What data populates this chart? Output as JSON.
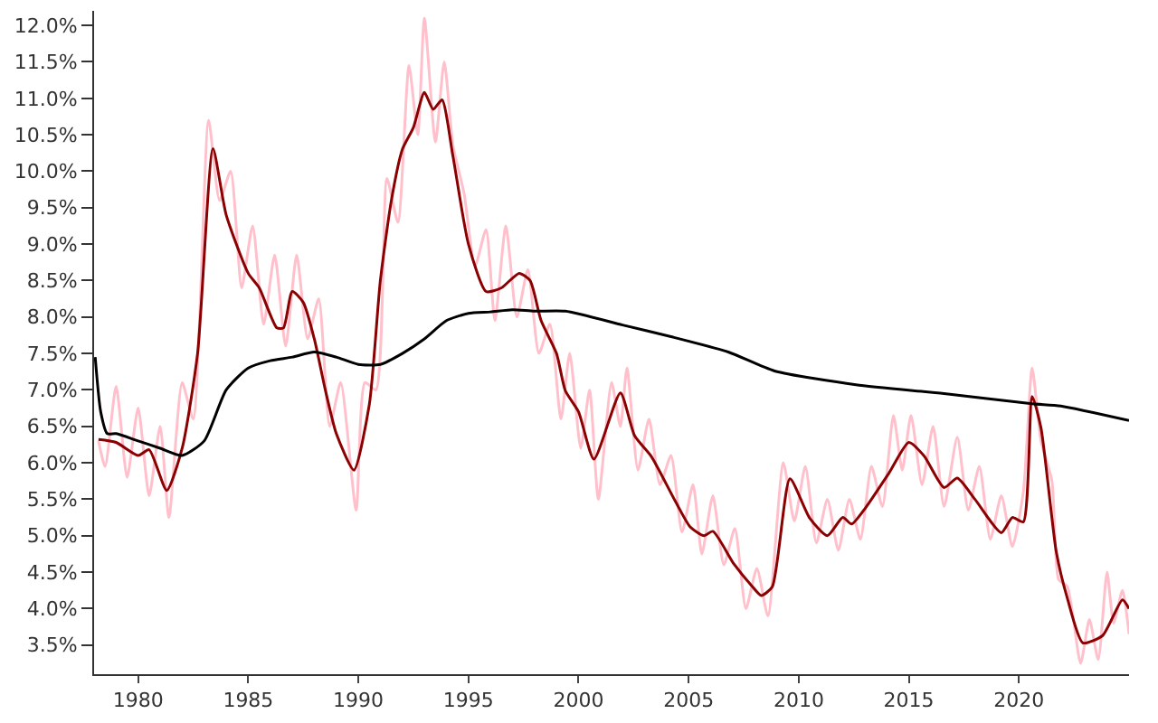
{
  "chart_data": {
    "type": "line",
    "xlim": [
      1978,
      2025
    ],
    "xticks": [
      1980,
      1985,
      1990,
      1995,
      2000,
      2005,
      2010,
      2015,
      2020
    ],
    "ylim": [
      3.1,
      12.2
    ],
    "yticks": [
      {
        "value": 3.5,
        "label": "3.5%"
      },
      {
        "value": 4.0,
        "label": "4.0%"
      },
      {
        "value": 4.5,
        "label": "4.5%"
      },
      {
        "value": 5.0,
        "label": "5.0%"
      },
      {
        "value": 5.5,
        "label": "5.5%"
      },
      {
        "value": 6.0,
        "label": "6.0%"
      },
      {
        "value": 6.5,
        "label": "6.5%"
      },
      {
        "value": 7.0,
        "label": "7.0%"
      },
      {
        "value": 7.5,
        "label": "7.5%"
      },
      {
        "value": 8.0,
        "label": "8.0%"
      },
      {
        "value": 8.5,
        "label": "8.5%"
      },
      {
        "value": 9.0,
        "label": "9.0%"
      },
      {
        "value": 9.5,
        "label": "9.5%"
      },
      {
        "value": 10.0,
        "label": "10.0%"
      },
      {
        "value": 10.5,
        "label": "10.5%"
      },
      {
        "value": 11.0,
        "label": "11.0%"
      },
      {
        "value": 11.5,
        "label": "11.5%"
      },
      {
        "value": 12.0,
        "label": "12.0%"
      }
    ],
    "marker": "none",
    "line_style": "solid",
    "series": [
      {
        "color": "#ffc0cb",
        "x": [
          1978.2,
          1978.5,
          1979.0,
          1979.5,
          1980.0,
          1980.5,
          1981.0,
          1981.4,
          1982.0,
          1982.5,
          1983.2,
          1983.7,
          1984.2,
          1984.7,
          1985.2,
          1985.7,
          1986.2,
          1986.7,
          1987.2,
          1987.7,
          1988.2,
          1988.7,
          1989.2,
          1989.9,
          1990.3,
          1990.8,
          1991.3,
          1991.8,
          1992.3,
          1992.7,
          1993.0,
          1993.5,
          1993.9,
          1994.3,
          1994.8,
          1995.3,
          1995.8,
          1996.2,
          1996.7,
          1997.2,
          1997.7,
          1998.2,
          1998.7,
          1999.2,
          1999.6,
          2000.1,
          2000.5,
          2000.9,
          2001.5,
          2001.9,
          2002.2,
          2002.7,
          2003.2,
          2003.7,
          2004.2,
          2004.7,
          2005.2,
          2005.6,
          2006.1,
          2006.6,
          2007.1,
          2007.6,
          2008.1,
          2008.6,
          2009.3,
          2009.8,
          2010.3,
          2010.8,
          2011.3,
          2011.8,
          2012.3,
          2012.8,
          2013.3,
          2013.8,
          2014.3,
          2014.7,
          2015.1,
          2015.6,
          2016.1,
          2016.6,
          2017.2,
          2017.7,
          2018.2,
          2018.7,
          2019.2,
          2019.7,
          2020.2,
          2020.6,
          2021.0,
          2021.5,
          2021.8,
          2022.2,
          2022.8,
          2023.2,
          2023.6,
          2024.0,
          2024.3,
          2024.7,
          2025.0
        ],
        "values": [
          6.3,
          5.95,
          7.05,
          5.8,
          6.75,
          5.55,
          6.5,
          5.25,
          7.1,
          6.6,
          10.7,
          9.6,
          10.0,
          8.4,
          9.25,
          7.9,
          8.85,
          7.6,
          8.85,
          7.7,
          8.25,
          6.5,
          7.1,
          5.35,
          7.1,
          7.0,
          9.9,
          9.3,
          11.45,
          10.5,
          12.1,
          10.4,
          11.5,
          10.35,
          9.7,
          8.7,
          9.2,
          7.95,
          9.25,
          8.0,
          8.65,
          7.5,
          7.9,
          6.6,
          7.5,
          6.2,
          7.0,
          5.5,
          7.1,
          6.5,
          7.3,
          5.9,
          6.6,
          5.7,
          6.1,
          5.05,
          5.7,
          4.75,
          5.55,
          4.6,
          5.1,
          4.0,
          4.55,
          3.9,
          6.0,
          5.2,
          5.95,
          4.9,
          5.5,
          4.8,
          5.5,
          4.95,
          5.95,
          5.4,
          6.65,
          5.9,
          6.65,
          5.7,
          6.5,
          5.4,
          6.35,
          5.35,
          5.95,
          4.95,
          5.55,
          4.85,
          5.6,
          7.3,
          6.3,
          5.75,
          4.4,
          4.3,
          3.25,
          3.85,
          3.3,
          4.5,
          3.8,
          4.25,
          3.65
        ]
      },
      {
        "color": "#8b0000",
        "x": [
          1978.2,
          1979.0,
          1980.0,
          1980.5,
          1981.3,
          1982.0,
          1982.7,
          1983.4,
          1984.0,
          1985.0,
          1985.5,
          1986.3,
          1986.6,
          1987.0,
          1987.5,
          1988.0,
          1988.5,
          1989.0,
          1989.8,
          1990.5,
          1991.0,
          1991.5,
          1992.0,
          1992.5,
          1993.0,
          1993.4,
          1993.8,
          1994.3,
          1995.0,
          1995.8,
          1996.5,
          1997.3,
          1997.8,
          1998.3,
          1999.0,
          1999.4,
          2000.0,
          2000.7,
          2001.9,
          2002.55,
          2003.3,
          2004.4,
          2005.07,
          2005.7,
          2006.1,
          2007.06,
          2007.9,
          2008.3,
          2008.8,
          2009.6,
          2010.5,
          2011.3,
          2012.0,
          2012.4,
          2013.05,
          2014.1,
          2015.0,
          2015.7,
          2016.6,
          2017.2,
          2018.0,
          2019.2,
          2019.7,
          2020.2,
          2020.6,
          2021.0,
          2021.7,
          2022.2,
          2022.9,
          2023.8,
          2024.7,
          2025.0
        ],
        "values": [
          6.32,
          6.28,
          6.1,
          6.18,
          5.62,
          6.2,
          7.5,
          10.31,
          9.4,
          8.6,
          8.4,
          7.85,
          7.85,
          8.35,
          8.2,
          7.7,
          7.0,
          6.4,
          5.9,
          6.8,
          8.5,
          9.6,
          10.3,
          10.6,
          11.08,
          10.85,
          10.98,
          10.2,
          9.0,
          8.35,
          8.4,
          8.6,
          8.5,
          7.95,
          7.5,
          6.99,
          6.7,
          6.05,
          6.96,
          6.37,
          6.09,
          5.47,
          5.12,
          5.0,
          5.06,
          4.61,
          4.3,
          4.18,
          4.3,
          5.78,
          5.24,
          5.0,
          5.25,
          5.16,
          5.39,
          5.86,
          6.28,
          6.09,
          5.66,
          5.79,
          5.5,
          5.04,
          5.25,
          5.19,
          6.91,
          6.48,
          4.77,
          4.14,
          3.53,
          3.63,
          4.12,
          4.0
        ]
      },
      {
        "color": "#000000",
        "x": [
          1978.05,
          1978.3,
          1978.6,
          1979.0,
          1980.0,
          1981.0,
          1982.0,
          1983.0,
          1984.0,
          1985.0,
          1986.0,
          1987.0,
          1988.0,
          1989.0,
          1990.0,
          1991.0,
          1992.0,
          1993.0,
          1994.0,
          1995.0,
          1996.0,
          1997.0,
          1998.0,
          1999.4,
          2002.0,
          2004.2,
          2006.8,
          2008.9,
          2012.6,
          2016.6,
          2020.6,
          2021.9,
          2025.0
        ],
        "values": [
          7.45,
          6.7,
          6.4,
          6.4,
          6.3,
          6.2,
          6.1,
          6.3,
          7.0,
          7.3,
          7.4,
          7.45,
          7.52,
          7.45,
          7.35,
          7.35,
          7.5,
          7.7,
          7.95,
          8.05,
          8.07,
          8.1,
          8.08,
          8.08,
          7.89,
          7.73,
          7.52,
          7.26,
          7.07,
          6.95,
          6.81,
          6.78,
          6.58
        ]
      }
    ]
  }
}
